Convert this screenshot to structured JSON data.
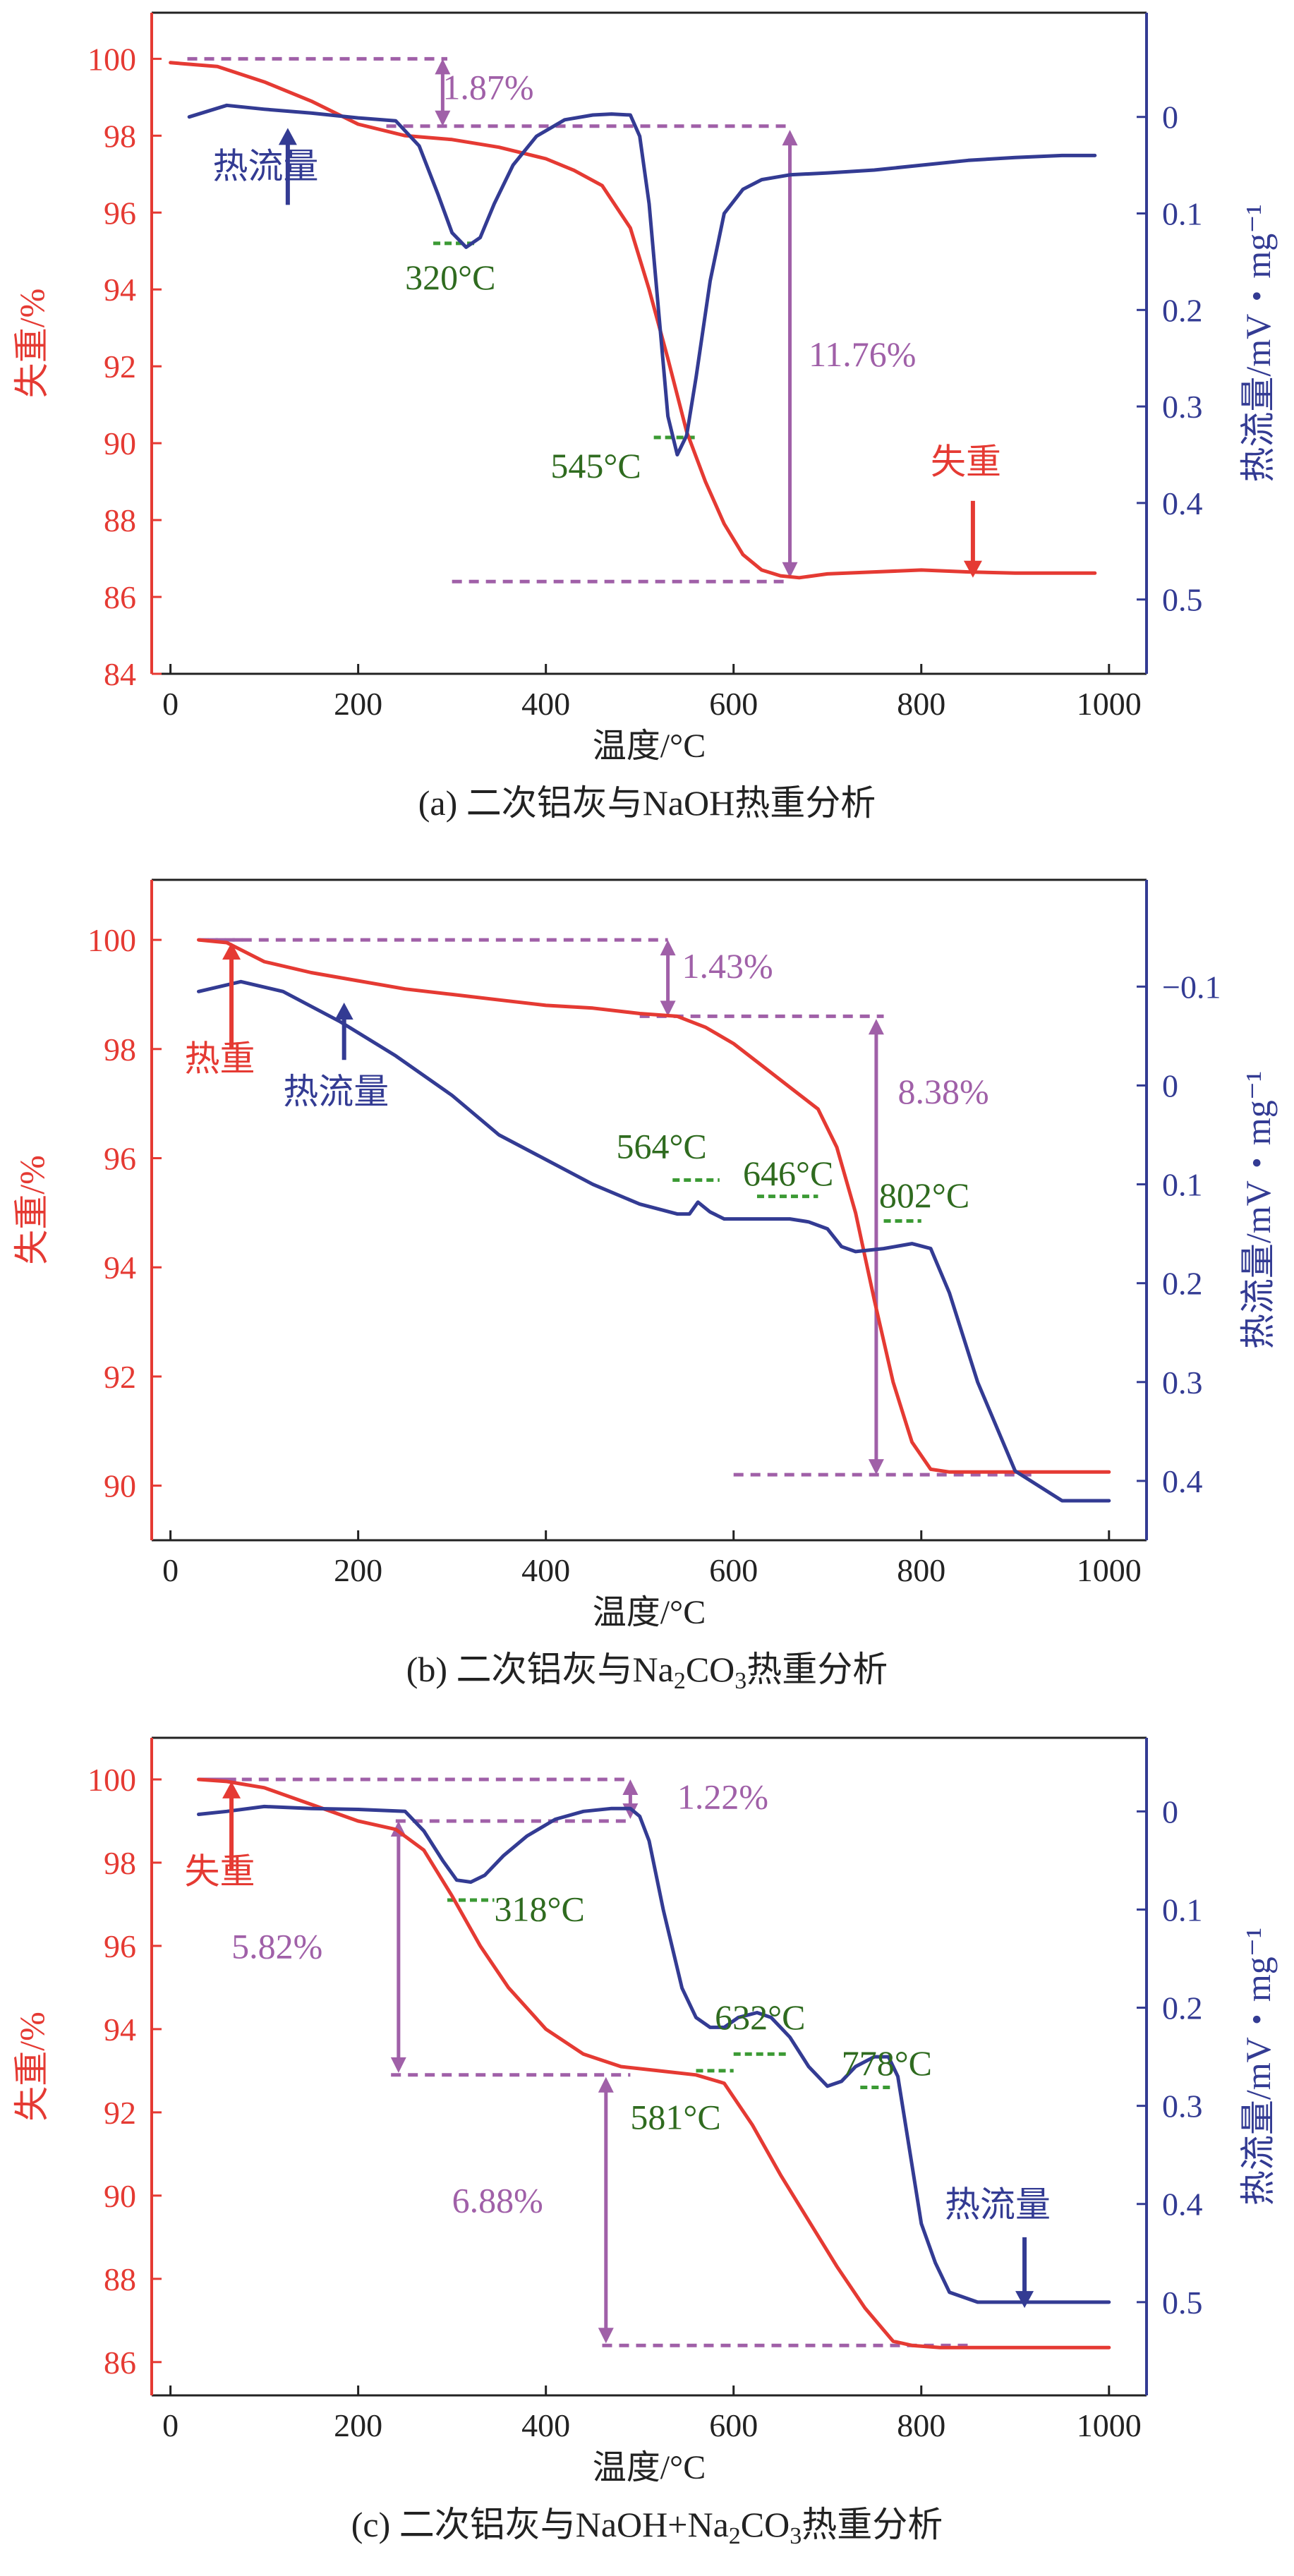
{
  "chart_data": [
    {
      "id": "a",
      "type": "line",
      "caption": "(a) 二次铝灰与NaOH热重分析",
      "xlabel": "温度/°C",
      "ylabel_left": "失重/%",
      "ylabel_right": "热流量/mV・mg⁻¹",
      "xlim": [
        -20,
        1040
      ],
      "x_ticks": [
        0,
        200,
        400,
        600,
        800,
        1000
      ],
      "ylim_left": [
        84,
        101.2
      ],
      "y_ticks_left": [
        84,
        86,
        88,
        90,
        92,
        94,
        96,
        98,
        100
      ],
      "ylim_right": [
        -0.108,
        0.577
      ],
      "y_ticks_right": [
        0,
        0.1,
        0.2,
        0.3,
        0.4,
        0.5
      ],
      "y_tick_labels_right": [
        "0",
        "0.1",
        "0.2",
        "0.3",
        "0.4",
        "0.5"
      ],
      "series": [
        {
          "name": "失重",
          "axis": "left",
          "color": "#e53a33",
          "x": [
            0,
            50,
            100,
            150,
            200,
            250,
            300,
            350,
            400,
            430,
            460,
            490,
            510,
            530,
            550,
            570,
            590,
            610,
            630,
            650,
            670,
            700,
            750,
            800,
            850,
            900,
            950,
            985
          ],
          "y": [
            99.9,
            99.8,
            99.4,
            98.9,
            98.3,
            98.0,
            97.9,
            97.7,
            97.4,
            97.1,
            96.7,
            95.6,
            94.0,
            92.2,
            90.3,
            89.0,
            87.9,
            87.1,
            86.7,
            86.55,
            86.5,
            86.6,
            86.65,
            86.7,
            86.65,
            86.62,
            86.62,
            86.62
          ]
        },
        {
          "name": "热流量",
          "axis": "right",
          "color": "#333b93",
          "x": [
            20,
            60,
            100,
            150,
            200,
            240,
            265,
            285,
            300,
            315,
            330,
            345,
            365,
            390,
            420,
            450,
            470,
            490,
            500,
            510,
            520,
            530,
            540,
            550,
            560,
            575,
            590,
            610,
            630,
            660,
            700,
            750,
            800,
            850,
            900,
            950,
            985
          ],
          "y": [
            0,
            -0.012,
            -0.008,
            -0.004,
            0.001,
            0.004,
            0.03,
            0.08,
            0.12,
            0.135,
            0.125,
            0.09,
            0.05,
            0.02,
            0.003,
            -0.002,
            -0.003,
            -0.002,
            0.02,
            0.09,
            0.2,
            0.31,
            0.35,
            0.33,
            0.27,
            0.17,
            0.1,
            0.075,
            0.065,
            0.06,
            0.058,
            0.055,
            0.05,
            0.045,
            0.042,
            0.04,
            0.04
          ]
        }
      ],
      "annotations": [
        {
          "text": "1.87%",
          "x": 290,
          "y": 98.95,
          "axis": "left",
          "color": "#a060a8"
        },
        {
          "text": "11.76%",
          "x": 680,
          "y": 92.0,
          "axis": "left",
          "color": "#a060a8"
        },
        {
          "text": "320°C",
          "x": 250,
          "y": 94.0,
          "axis": "left",
          "color": "#2f6b1f"
        },
        {
          "text": "545°C",
          "x": 405,
          "y": 89.1,
          "axis": "left",
          "color": "#2f6b1f"
        },
        {
          "text": "失重",
          "x": 810,
          "y": 89.2,
          "axis": "left",
          "color": "#e53a33"
        },
        {
          "text": "热流量",
          "x": 45,
          "y": 96.9,
          "axis": "left",
          "color": "#333b93"
        }
      ]
    },
    {
      "id": "b",
      "type": "line",
      "caption_parts": [
        "(b) 二次铝灰与Na",
        "2",
        "CO",
        "3",
        "热重分析"
      ],
      "xlabel": "温度/°C",
      "ylabel_left": "失重/%",
      "ylabel_right": "热流量/mV・mg⁻¹",
      "xlim": [
        -20,
        1040
      ],
      "x_ticks": [
        0,
        200,
        400,
        600,
        800,
        1000
      ],
      "ylim_left": [
        89.0,
        101.1
      ],
      "y_ticks_left": [
        90,
        92,
        94,
        96,
        98,
        100
      ],
      "ylim_right": [
        -0.208,
        0.46
      ],
      "y_ticks_right": [
        -0.1,
        0,
        0.1,
        0.2,
        0.3,
        0.4
      ],
      "y_tick_labels_right": [
        "−0.1",
        "0",
        "0.1",
        "0.2",
        "0.3",
        "0.4"
      ],
      "series": [
        {
          "name": "热重",
          "axis": "left",
          "color": "#e53a33",
          "x": [
            30,
            60,
            100,
            150,
            200,
            250,
            300,
            350,
            400,
            450,
            500,
            540,
            570,
            600,
            630,
            660,
            690,
            710,
            730,
            750,
            770,
            790,
            810,
            830,
            900,
            1000
          ],
          "y": [
            100,
            99.95,
            99.6,
            99.4,
            99.25,
            99.1,
            99.0,
            98.9,
            98.8,
            98.75,
            98.65,
            98.6,
            98.4,
            98.1,
            97.7,
            97.3,
            96.9,
            96.2,
            95.0,
            93.4,
            91.9,
            90.8,
            90.3,
            90.25,
            90.25,
            90.25
          ],
          "dashed_from": 30,
          "dashed_to": 80
        },
        {
          "name": "热流量",
          "axis": "right",
          "color": "#333b93",
          "x": [
            30,
            75,
            120,
            180,
            240,
            300,
            350,
            400,
            450,
            500,
            540,
            553,
            562,
            575,
            590,
            610,
            640,
            660,
            680,
            700,
            715,
            730,
            760,
            790,
            810,
            830,
            860,
            900,
            950,
            1000
          ],
          "y": [
            -0.095,
            -0.105,
            -0.095,
            -0.065,
            -0.03,
            0.01,
            0.05,
            0.075,
            0.1,
            0.12,
            0.13,
            0.13,
            0.118,
            0.128,
            0.135,
            0.135,
            0.135,
            0.135,
            0.138,
            0.145,
            0.163,
            0.168,
            0.165,
            0.16,
            0.165,
            0.21,
            0.3,
            0.39,
            0.42,
            0.42
          ]
        }
      ],
      "annotations": [
        {
          "text": "1.43%",
          "x": 545,
          "y": 99.3,
          "axis": "left",
          "color": "#a060a8"
        },
        {
          "text": "8.38%",
          "x": 775,
          "y": 97.0,
          "axis": "left",
          "color": "#a060a8"
        },
        {
          "text": "564°C",
          "x": 475,
          "y": 96.0,
          "axis": "left",
          "color": "#2f6b1f"
        },
        {
          "text": "646°C",
          "x": 610,
          "y": 95.5,
          "axis": "left",
          "color": "#2f6b1f"
        },
        {
          "text": "802°C",
          "x": 755,
          "y": 95.1,
          "axis": "left",
          "color": "#2f6b1f"
        },
        {
          "text": "热重",
          "x": 15,
          "y": 97.6,
          "axis": "left",
          "color": "#e53a33"
        },
        {
          "text": "热流量",
          "x": 120,
          "y": 97.0,
          "axis": "left",
          "color": "#333b93"
        }
      ]
    },
    {
      "id": "c",
      "type": "line",
      "caption_parts": [
        "(c) 二次铝灰与NaOH+Na",
        "2",
        "CO",
        "3",
        "热重分析"
      ],
      "xlabel": "温度/°C",
      "ylabel_left": "失重/%",
      "ylabel_right": "热流量/mV・mg⁻¹",
      "xlim": [
        -20,
        1040
      ],
      "x_ticks": [
        0,
        200,
        400,
        600,
        800,
        1000
      ],
      "ylim_left": [
        85.2,
        101.0
      ],
      "y_ticks_left": [
        86,
        88,
        90,
        92,
        94,
        96,
        98,
        100
      ],
      "ylim_right": [
        -0.075,
        0.595
      ],
      "y_ticks_right": [
        0,
        0.1,
        0.2,
        0.3,
        0.4,
        0.5
      ],
      "y_tick_labels_right": [
        "0",
        "0.1",
        "0.2",
        "0.3",
        "0.4",
        "0.5"
      ],
      "series": [
        {
          "name": "失重",
          "axis": "left",
          "color": "#e53a33",
          "x": [
            30,
            60,
            100,
            150,
            200,
            240,
            270,
            300,
            330,
            360,
            400,
            440,
            480,
            520,
            560,
            590,
            620,
            650,
            680,
            710,
            740,
            770,
            790,
            820,
            900,
            1000
          ],
          "y": [
            100,
            99.95,
            99.8,
            99.4,
            99.0,
            98.8,
            98.3,
            97.2,
            96.0,
            95.0,
            94.0,
            93.4,
            93.1,
            93.0,
            92.9,
            92.7,
            91.7,
            90.5,
            89.4,
            88.3,
            87.3,
            86.5,
            86.4,
            86.35,
            86.35,
            86.35
          ],
          "dashed_from": 30,
          "dashed_to": 70
        },
        {
          "name": "热流量",
          "axis": "right",
          "color": "#333b93",
          "x": [
            30,
            60,
            100,
            150,
            200,
            250,
            270,
            290,
            305,
            320,
            335,
            355,
            380,
            410,
            440,
            470,
            490,
            500,
            510,
            525,
            545,
            560,
            575,
            590,
            605,
            625,
            640,
            660,
            680,
            700,
            715,
            730,
            750,
            765,
            775,
            790,
            800,
            815,
            830,
            860,
            900,
            950,
            1000
          ],
          "y": [
            0.003,
            0,
            -0.005,
            -0.003,
            -0.002,
            0,
            0.02,
            0.05,
            0.07,
            0.072,
            0.065,
            0.045,
            0.025,
            0.008,
            0.0,
            -0.003,
            -0.003,
            0.005,
            0.03,
            0.1,
            0.18,
            0.21,
            0.22,
            0.22,
            0.21,
            0.205,
            0.21,
            0.23,
            0.26,
            0.28,
            0.275,
            0.26,
            0.25,
            0.25,
            0.27,
            0.36,
            0.42,
            0.46,
            0.49,
            0.5,
            0.5,
            0.5,
            0.5
          ]
        }
      ],
      "annotations": [
        {
          "text": "1.22%",
          "x": 540,
          "y": 99.3,
          "axis": "left",
          "color": "#a060a8"
        },
        {
          "text": "5.82%",
          "x": 65,
          "y": 95.7,
          "axis": "left",
          "color": "#a060a8"
        },
        {
          "text": "6.88%",
          "x": 300,
          "y": 89.6,
          "axis": "left",
          "color": "#a060a8"
        },
        {
          "text": "318°C",
          "x": 345,
          "y": 96.6,
          "axis": "left",
          "color": "#2f6b1f"
        },
        {
          "text": "632°C",
          "x": 580,
          "y": 94.0,
          "axis": "left",
          "color": "#2f6b1f"
        },
        {
          "text": "581°C",
          "x": 490,
          "y": 91.6,
          "axis": "left",
          "color": "#2f6b1f"
        },
        {
          "text": "778°C",
          "x": 715,
          "y": 92.9,
          "axis": "left",
          "color": "#2f6b1f"
        },
        {
          "text": "失重",
          "x": 15,
          "y": 97.5,
          "axis": "left",
          "color": "#e53a33"
        },
        {
          "text": "热流量",
          "x": 825,
          "y": 89.5,
          "axis": "left",
          "color": "#333b93"
        }
      ]
    }
  ]
}
